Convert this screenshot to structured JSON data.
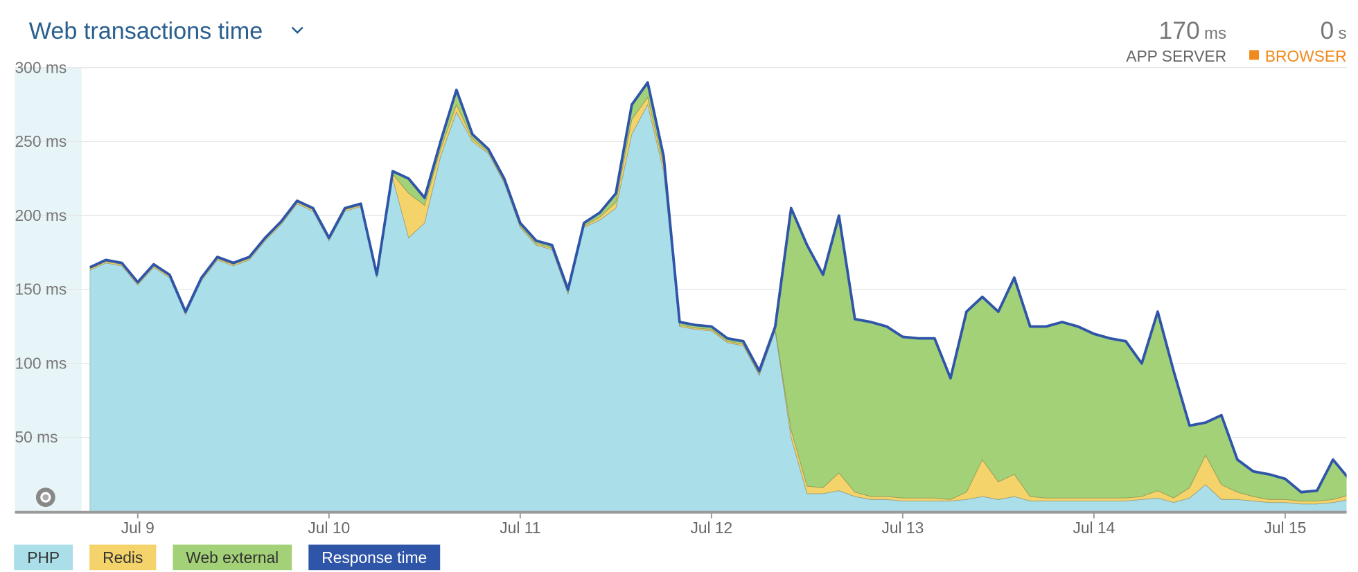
{
  "chart_data": {
    "type": "area",
    "title": "Web transactions time",
    "summary": [
      {
        "value": 170,
        "unit": "ms",
        "label": "APP SERVER"
      },
      {
        "value": 0,
        "unit": "s",
        "label": "BROWSER",
        "color": "#f08a1c"
      }
    ],
    "categories": [
      null,
      null,
      null,
      "Jul 9",
      null,
      null,
      null,
      null,
      null,
      null,
      null,
      null,
      null,
      null,
      null,
      "Jul 10",
      null,
      null,
      null,
      null,
      null,
      null,
      null,
      null,
      null,
      null,
      null,
      "Jul 11",
      null,
      null,
      null,
      null,
      null,
      null,
      null,
      null,
      null,
      null,
      null,
      "Jul 12",
      null,
      null,
      null,
      null,
      null,
      null,
      null,
      null,
      null,
      null,
      null,
      "Jul 13",
      null,
      null,
      null,
      null,
      null,
      null,
      null,
      null,
      null,
      null,
      null,
      "Jul 14",
      null,
      null,
      null,
      null,
      null,
      null,
      null,
      null,
      null,
      null,
      null,
      "Jul 15",
      null,
      null,
      null,
      null
    ],
    "series": [
      {
        "name": "PHP",
        "color": "#aadfea",
        "values": [
          163,
          168,
          166,
          153,
          165,
          158,
          133,
          156,
          170,
          166,
          170,
          183,
          194,
          208,
          203,
          183,
          203,
          206,
          158,
          225,
          185,
          195,
          240,
          270,
          250,
          242,
          222,
          192,
          180,
          177,
          147,
          192,
          197,
          205,
          255,
          275,
          230,
          125,
          123,
          122,
          114,
          112,
          92,
          122,
          50,
          12,
          12,
          14,
          10,
          8,
          8,
          7,
          7,
          7,
          7,
          8,
          10,
          8,
          10,
          7,
          7,
          7,
          7,
          7,
          7,
          7,
          8,
          9,
          6,
          9,
          18,
          8,
          8,
          7,
          6,
          6,
          5,
          5,
          6,
          8
        ]
      },
      {
        "name": "Redis",
        "color": "#f4d36a",
        "values": [
          1,
          1,
          1,
          1,
          1,
          1,
          1,
          1,
          1,
          1,
          1,
          1,
          1,
          1,
          1,
          1,
          1,
          1,
          1,
          3,
          30,
          12,
          5,
          5,
          2,
          1,
          1,
          1,
          1,
          1,
          1,
          1,
          2,
          4,
          10,
          5,
          4,
          1,
          1,
          1,
          1,
          1,
          1,
          1,
          5,
          5,
          4,
          12,
          3,
          2,
          2,
          2,
          2,
          2,
          1,
          5,
          25,
          12,
          15,
          3,
          2,
          2,
          2,
          2,
          2,
          2,
          2,
          5,
          3,
          7,
          20,
          10,
          5,
          3,
          2,
          2,
          2,
          2,
          2,
          3
        ]
      },
      {
        "name": "Web external",
        "color": "#a3d177",
        "values": [
          1,
          1,
          1,
          1,
          1,
          1,
          1,
          1,
          1,
          1,
          1,
          1,
          1,
          1,
          1,
          1,
          1,
          1,
          1,
          2,
          10,
          5,
          5,
          10,
          3,
          2,
          2,
          2,
          2,
          2,
          2,
          2,
          3,
          6,
          10,
          10,
          6,
          2,
          2,
          2,
          2,
          2,
          2,
          2,
          150,
          163,
          144,
          174,
          117,
          118,
          115,
          109,
          108,
          108,
          82,
          122,
          110,
          115,
          133,
          115,
          116,
          119,
          116,
          111,
          108,
          106,
          90,
          121,
          86,
          42,
          22,
          47,
          22,
          17,
          17,
          14,
          6,
          7,
          27,
          11
        ]
      },
      {
        "name": "Response time",
        "color": "#2f55a8",
        "type": "line",
        "values": [
          165,
          170,
          168,
          155,
          167,
          160,
          135,
          158,
          172,
          168,
          172,
          185,
          196,
          210,
          205,
          185,
          205,
          208,
          160,
          230,
          225,
          212,
          250,
          285,
          255,
          245,
          225,
          195,
          183,
          180,
          150,
          195,
          202,
          215,
          275,
          290,
          240,
          128,
          126,
          125,
          117,
          115,
          95,
          125,
          205,
          180,
          160,
          200,
          130,
          128,
          125,
          118,
          117,
          117,
          90,
          135,
          145,
          135,
          158,
          125,
          125,
          128,
          125,
          120,
          117,
          115,
          100,
          135,
          95,
          58,
          60,
          65,
          35,
          27,
          25,
          22,
          13,
          14,
          35,
          22
        ]
      }
    ],
    "stacked": true,
    "ylim": [
      0,
      300
    ],
    "yticks": [
      {
        "value": 50,
        "label": "50 ms"
      },
      {
        "value": 100,
        "label": "100 ms"
      },
      {
        "value": 150,
        "label": "150 ms"
      },
      {
        "value": 200,
        "label": "200 ms"
      },
      {
        "value": 250,
        "label": "250 ms"
      },
      {
        "value": 300,
        "label": "300 ms"
      }
    ],
    "grid": true
  }
}
